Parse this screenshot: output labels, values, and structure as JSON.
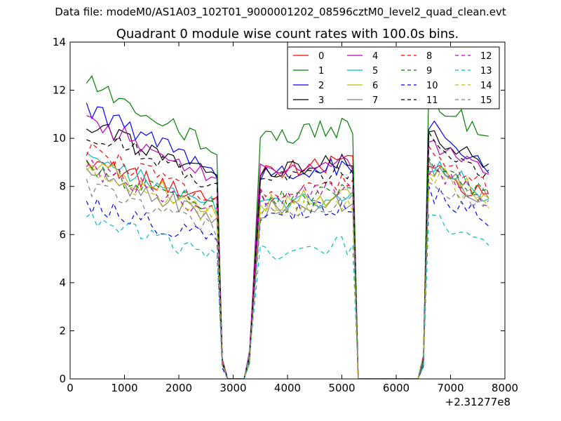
{
  "figure": {
    "suptitle": "Data file: modeM0/AS1A03_102T01_9000001202_08596cztM0_level2_quad_clean.evt"
  },
  "chart_data": {
    "type": "line",
    "title": "Quadrant 0 module wise count rates with 100.0s bins.",
    "xlabel": "",
    "ylabel": "",
    "x_offset_label": "+2.31277e8",
    "xlim": [
      0,
      8000
    ],
    "ylim": [
      0,
      14
    ],
    "x_ticks": [
      0,
      1000,
      2000,
      3000,
      4000,
      5000,
      6000,
      7000,
      8000
    ],
    "y_ticks": [
      0,
      2,
      4,
      6,
      8,
      10,
      12,
      14
    ],
    "grid": false,
    "legend": {
      "placement": "top-right",
      "columns": 4
    },
    "segments": [
      {
        "x_start": 300,
        "x_end": 2700,
        "step": 100,
        "drop": [
          2800,
          2900
        ],
        "zero": [
          3000,
          3200
        ],
        "rise": [
          3300
        ]
      },
      {
        "x_start": 3500,
        "x_end": 5200,
        "step": 100,
        "drop": [
          5300
        ],
        "zero": [
          5400,
          6400
        ]
      },
      {
        "x_start": 6600,
        "x_end": 7700,
        "step": 100
      }
    ],
    "series": [
      {
        "name": "0",
        "color": "#ff0000",
        "dash": "solid",
        "baselines": [
          9.2,
          8.6,
          8.8
        ],
        "shape": "decay",
        "variation": 0.4
      },
      {
        "name": "1",
        "color": "#008000",
        "dash": "solid",
        "baselines": [
          12.3,
          10.0,
          11.8
        ],
        "shape": "decay",
        "variation": 0.4
      },
      {
        "name": "2",
        "color": "#0000ff",
        "dash": "solid",
        "baselines": [
          11.2,
          8.5,
          10.5
        ],
        "shape": "decay",
        "variation": 0.4
      },
      {
        "name": "3",
        "color": "#000000",
        "dash": "solid",
        "baselines": [
          10.6,
          8.7,
          10.3
        ],
        "shape": "decay",
        "variation": 0.4
      },
      {
        "name": "4",
        "color": "#bf00bf",
        "dash": "solid",
        "baselines": [
          10.8,
          8.6,
          9.9
        ],
        "shape": "decay",
        "variation": 0.4
      },
      {
        "name": "5",
        "color": "#00bfbf",
        "dash": "solid",
        "baselines": [
          9.2,
          7.2,
          9.0
        ],
        "shape": "decay",
        "variation": 0.4
      },
      {
        "name": "6",
        "color": "#bfbf00",
        "dash": "solid",
        "baselines": [
          9.0,
          7.3,
          8.8
        ],
        "shape": "decay",
        "variation": 0.4
      },
      {
        "name": "7",
        "color": "#808080",
        "dash": "solid",
        "baselines": [
          8.6,
          7.0,
          8.8
        ],
        "shape": "decay",
        "variation": 0.4
      },
      {
        "name": "8",
        "color": "#ff0000",
        "dash": "dashed",
        "baselines": [
          9.5,
          7.8,
          9.3
        ],
        "shape": "decay",
        "variation": 0.4
      },
      {
        "name": "9",
        "color": "#008000",
        "dash": "dashed",
        "baselines": [
          8.9,
          7.4,
          9.0
        ],
        "shape": "decay",
        "variation": 0.4
      },
      {
        "name": "10",
        "color": "#0000ff",
        "dash": "dashed",
        "baselines": [
          7.3,
          6.8,
          7.8
        ],
        "shape": "decay",
        "variation": 0.4
      },
      {
        "name": "11",
        "color": "#000000",
        "dash": "dashed",
        "baselines": [
          10.3,
          8.2,
          10.0
        ],
        "shape": "decay",
        "variation": 0.4
      },
      {
        "name": "12",
        "color": "#bf00bf",
        "dash": "dashed",
        "baselines": [
          8.8,
          7.6,
          8.8
        ],
        "shape": "decay",
        "variation": 0.4
      },
      {
        "name": "13",
        "color": "#00bfbf",
        "dash": "dashed",
        "baselines": [
          6.6,
          5.3,
          6.6
        ],
        "shape": "decay",
        "variation": 0.4
      },
      {
        "name": "14",
        "color": "#bfbf00",
        "dash": "dashed",
        "baselines": [
          8.6,
          7.0,
          8.5
        ],
        "shape": "decay",
        "variation": 0.4
      },
      {
        "name": "15",
        "color": "#808080",
        "dash": "dashed",
        "baselines": [
          8.0,
          7.0,
          8.3
        ],
        "shape": "decay",
        "variation": 0.4
      }
    ]
  }
}
